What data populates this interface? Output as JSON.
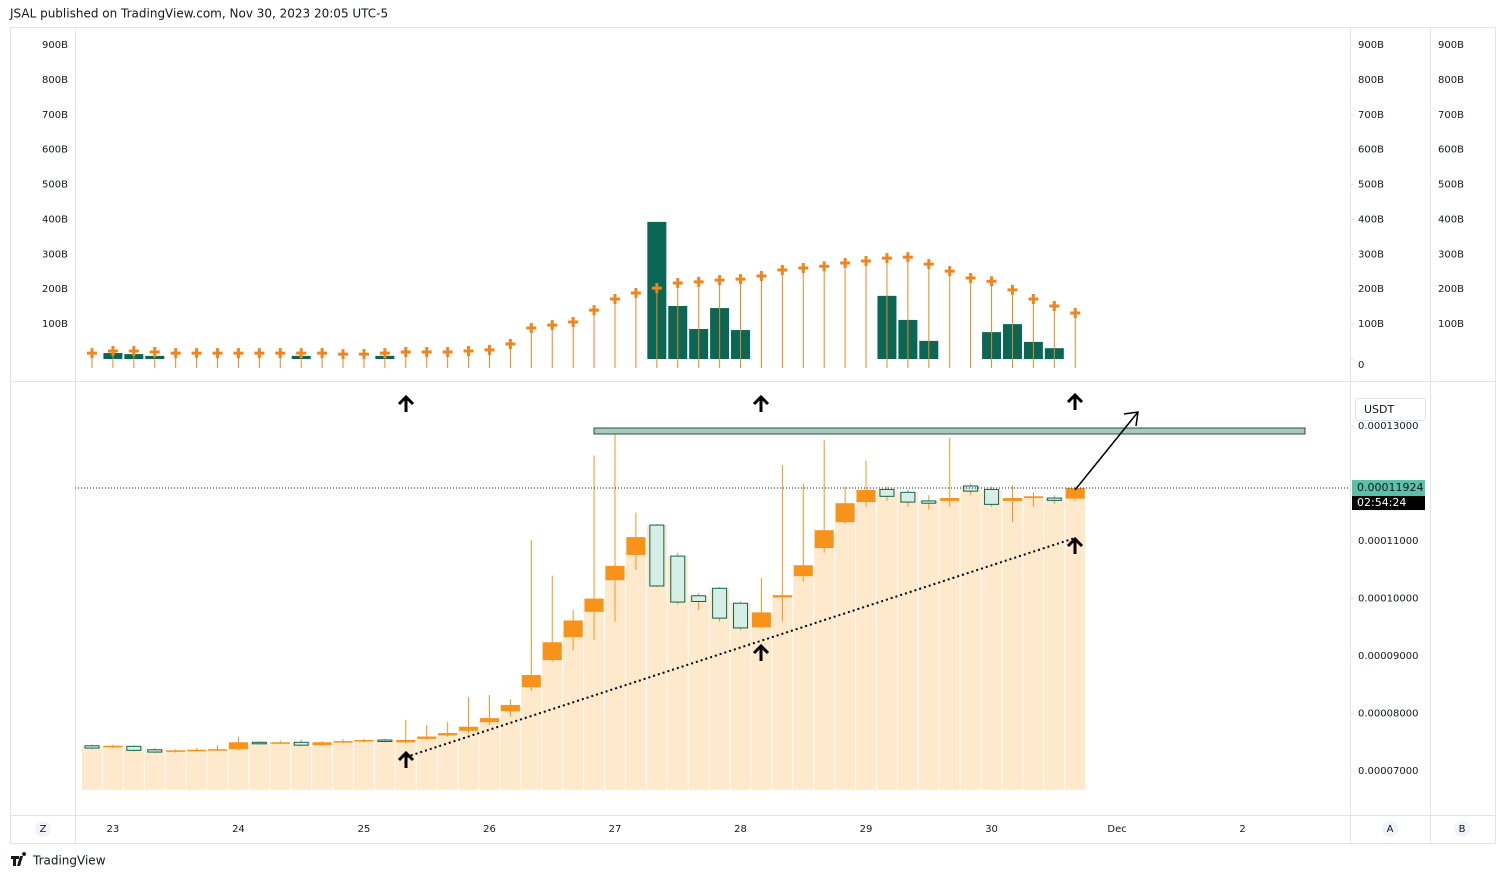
{
  "header": "JSAL published on TradingView.com, Nov 30, 2023 20:05 UTC-5",
  "footer": "TradingView",
  "buttons": {
    "left": "Z",
    "right": "A",
    "far_right": "B"
  },
  "chart_data": [
    {
      "type": "volume",
      "color": "#0b6655",
      "values": [
        0,
        17,
        14,
        9,
        0,
        0,
        0,
        0,
        0,
        0,
        9,
        0,
        0,
        0,
        9,
        0,
        0,
        0,
        0,
        0,
        0,
        0,
        0,
        0,
        0,
        0,
        0,
        393,
        152,
        86,
        146,
        83,
        0,
        0,
        0,
        0,
        0,
        0,
        181,
        112,
        52,
        0,
        0,
        77,
        100,
        49,
        31,
        0
      ],
      "marker_color": "#f0851e",
      "marker_values": [
        17,
        23,
        23,
        20,
        17,
        17,
        17,
        17,
        17,
        17,
        17,
        17,
        14,
        14,
        17,
        20,
        20,
        20,
        23,
        26,
        43,
        89,
        97,
        106,
        140,
        172,
        189,
        203,
        218,
        221,
        226,
        229,
        238,
        255,
        261,
        266,
        275,
        281,
        289,
        292,
        272,
        252,
        232,
        223,
        198,
        172,
        152,
        132
      ],
      "ylim": [
        0,
        900
      ],
      "yticks": [
        0,
        {
          "value": 100,
          "label": "100B"
        },
        {
          "value": 200,
          "label": "200B"
        },
        {
          "value": 300,
          "label": "300B"
        },
        {
          "value": 400,
          "label": "400B"
        },
        {
          "value": 500,
          "label": "500B"
        },
        {
          "value": 600,
          "label": "600B"
        },
        {
          "value": 700,
          "label": "700B"
        },
        {
          "value": 800,
          "label": "800B"
        },
        {
          "value": 900,
          "label": "900B"
        }
      ]
    },
    {
      "type": "candlestick",
      "up_color": "#f7931a",
      "down_color": "#0b6655",
      "column_color": "#ffe9cc",
      "open": [
        7.44e-05,
        7.42e-05,
        7.43e-05,
        7.37e-05,
        7.34e-05,
        7.36e-05,
        7.37e-05,
        7.38e-05,
        7.5e-05,
        7.49e-05,
        7.5e-05,
        7.45e-05,
        7.5e-05,
        7.52e-05,
        7.54e-05,
        7.5e-05,
        7.56e-05,
        7.62e-05,
        7.7e-05,
        7.85e-05,
        8.04e-05,
        8.46e-05,
        8.93e-05,
        9.33e-05,
        9.77e-05,
        0.0001032,
        0.0001076,
        0.0001128,
        0.0001074,
        0.0001005,
        0.0001018,
        9.92e-05,
        9.5e-05,
        0.0001002,
        0.0001039,
        0.0001088,
        0.0001133,
        0.0001168,
        0.000119,
        0.0001185,
        0.000117,
        0.000117,
        0.0001196,
        0.000119,
        0.000117,
        0.0001175,
        0.0001175,
        0.0001174
      ],
      "high": [
        7.46e-05,
        7.46e-05,
        7.45e-05,
        7.4e-05,
        7.38e-05,
        7.4e-05,
        7.45e-05,
        7.6e-05,
        7.52e-05,
        7.53e-05,
        7.55e-05,
        7.52e-05,
        7.56e-05,
        7.56e-05,
        7.56e-05,
        7.89e-05,
        7.8e-05,
        7.85e-05,
        8.29e-05,
        8.32e-05,
        8.25e-05,
        0.0001102,
        0.000104,
        9.8e-05,
        0.0001249,
        0.0001293,
        0.000115,
        0.000113,
        0.000108,
        0.000101,
        0.000102,
        9.95e-05,
        0.0001036,
        0.0001232,
        0.00012,
        0.0001276,
        0.0001195,
        0.000124,
        0.0001195,
        0.000119,
        0.000118,
        0.000128,
        0.00012,
        0.0001195,
        0.0001197,
        0.0001185,
        0.000118,
        0.0001195
      ],
      "low": [
        7.38e-05,
        7.4e-05,
        7.34e-05,
        7.31e-05,
        7.32e-05,
        7.34e-05,
        7.35e-05,
        7.36e-05,
        7.46e-05,
        7.47e-05,
        7.43e-05,
        7.44e-05,
        7.48e-05,
        7.5e-05,
        7.5e-05,
        7.48e-05,
        7.54e-05,
        7.6e-05,
        7.65e-05,
        7.8e-05,
        7.95e-05,
        8.4e-05,
        8.9e-05,
        9.1e-05,
        9.28e-05,
        9.6e-05,
        0.000105,
        0.000102,
        9.9e-05,
        9.8e-05,
        9.6e-05,
        9.45e-05,
        9.49e-05,
        9.6e-05,
        0.000103,
        0.000108,
        0.000113,
        0.000116,
        0.000117,
        0.000116,
        0.0001155,
        0.000116,
        0.000118,
        0.000116,
        0.0001133,
        0.000116,
        0.0001165,
        0.000117
      ],
      "close": [
        7.4e-05,
        7.44e-05,
        7.36e-05,
        7.33e-05,
        7.36e-05,
        7.37e-05,
        7.38e-05,
        7.5e-05,
        7.49e-05,
        7.5e-05,
        7.45e-05,
        7.5e-05,
        7.52e-05,
        7.54e-05,
        7.52e-05,
        7.54e-05,
        7.6e-05,
        7.66e-05,
        7.77e-05,
        7.92e-05,
        8.15e-05,
        8.67e-05,
        9.24e-05,
        9.62e-05,
        0.0001,
        0.0001057,
        0.0001107,
        0.0001022,
        9.94e-05,
        9.95e-05,
        9.66e-05,
        9.49e-05,
        9.76e-05,
        0.0001006,
        0.0001058,
        0.0001119,
        0.0001166,
        0.0001189,
        0.0001178,
        0.0001168,
        0.0001166,
        0.0001175,
        0.0001187,
        0.0001164,
        0.0001175,
        0.0001178,
        0.0001171,
        0.00011924
      ],
      "ylim": [
        6.67e-05,
        0.0001363
      ],
      "yticks": [
        {
          "value": 0.00013,
          "label": "0.00013000"
        },
        {
          "value": 0.00011,
          "label": "0.00011000"
        },
        {
          "value": 0.0001,
          "label": "0.00010000"
        },
        {
          "value": 9e-05,
          "label": "0.00009000"
        },
        {
          "value": 8e-05,
          "label": "0.00008000"
        },
        {
          "value": 7e-05,
          "label": "0.00007000"
        }
      ],
      "xticks": [
        {
          "value": 1,
          "label": "23"
        },
        {
          "value": 7,
          "label": "24"
        },
        {
          "value": 13,
          "label": "25"
        },
        {
          "value": 19,
          "label": "26"
        },
        {
          "value": 25,
          "label": "27"
        },
        {
          "value": 31,
          "label": "28"
        },
        {
          "value": 37,
          "label": "29"
        },
        {
          "value": 43,
          "label": "30"
        },
        {
          "value": 49,
          "label": "Dec"
        },
        {
          "value": 55,
          "label": "2"
        }
      ],
      "currency": "USDT",
      "countdown": "02:54:24"
    }
  ]
}
